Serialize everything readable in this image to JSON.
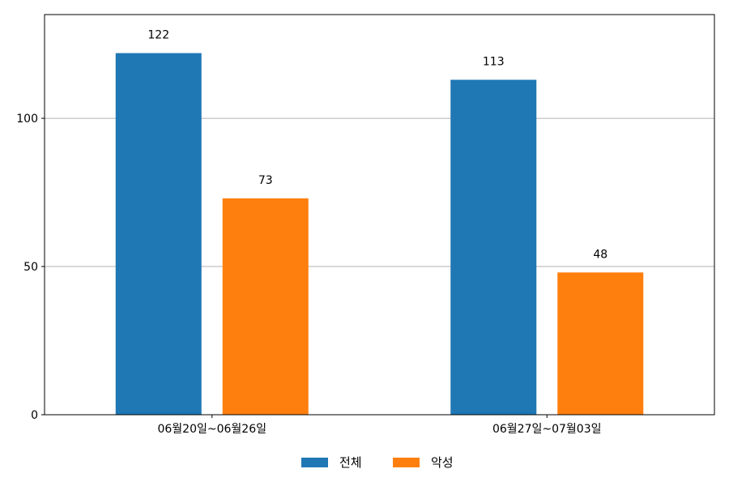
{
  "chart_data": {
    "type": "bar",
    "categories": [
      "06월20일~06월26일",
      "06월27일~07월03일"
    ],
    "series": [
      {
        "name": "전체",
        "values": [
          122,
          113
        ],
        "color": "#1f77b4"
      },
      {
        "name": "악성",
        "values": [
          73,
          48
        ],
        "color": "#ff7f0e"
      }
    ],
    "ylim": [
      0,
      135
    ],
    "yticks": [
      0,
      50,
      100
    ],
    "grid": true,
    "legend_position": "bottom-center"
  }
}
